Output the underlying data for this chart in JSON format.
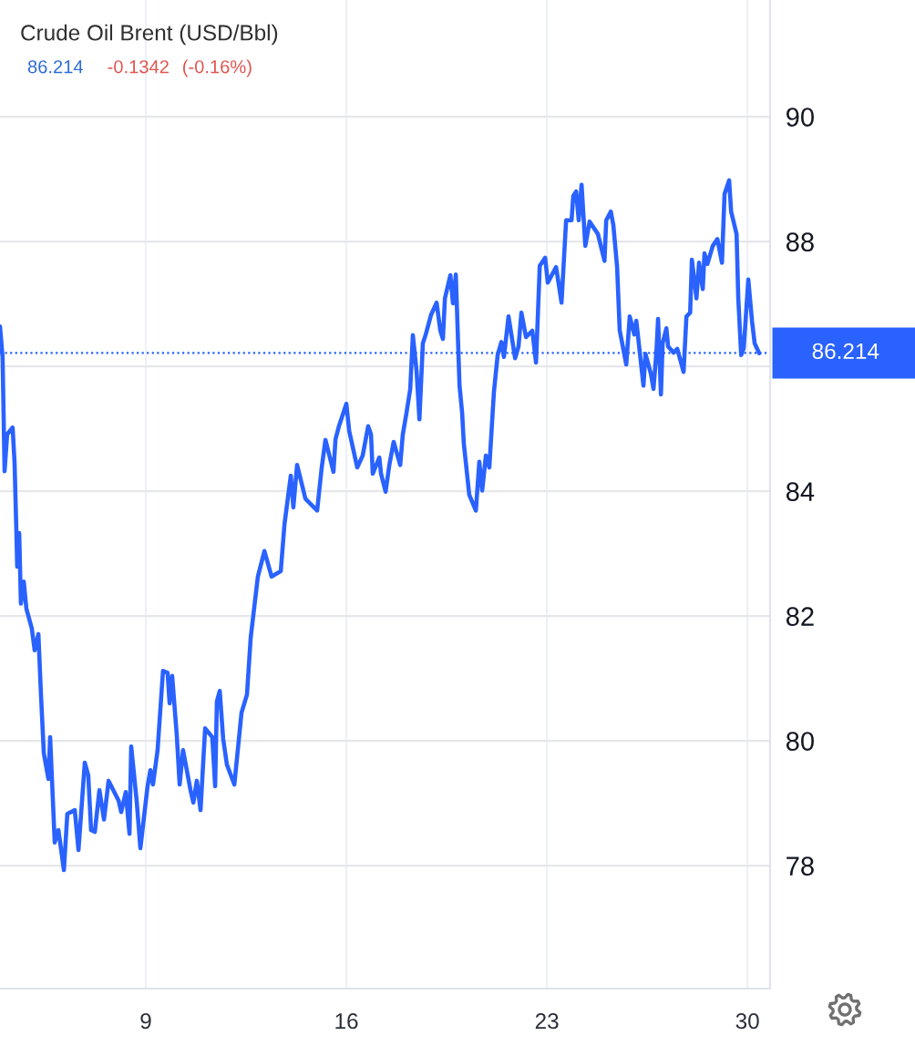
{
  "chart_data": {
    "type": "line",
    "title": "Crude Oil Brent (USD/Bbl)",
    "annotations": [
      "86.214",
      "-0.1342",
      "(-0.16%)"
    ],
    "color": "#2962ff",
    "x": [
      3.91,
      4.0,
      4.07,
      4.16,
      4.35,
      4.42,
      4.48,
      4.51,
      4.58,
      4.64,
      4.74,
      4.83,
      5.02,
      5.12,
      5.25,
      5.34,
      5.44,
      5.6,
      5.66,
      5.82,
      5.95,
      6.14,
      6.26,
      6.52,
      6.65,
      6.87,
      6.99,
      7.09,
      7.22,
      7.38,
      7.54,
      7.7,
      8.05,
      8.14,
      8.3,
      8.43,
      8.49,
      8.68,
      8.81,
      9.06,
      9.16,
      9.25,
      9.41,
      9.6,
      9.76,
      9.83,
      9.92,
      10.08,
      10.18,
      10.3,
      10.56,
      10.66,
      10.78,
      10.91,
      11.07,
      11.32,
      11.42,
      11.48,
      11.58,
      11.7,
      11.83,
      12.09,
      12.34,
      12.53,
      12.66,
      12.91,
      13.14,
      13.39,
      13.71,
      13.84,
      14.06,
      14.15,
      14.28,
      14.57,
      14.98,
      15.14,
      15.27,
      15.55,
      15.62,
      15.74,
      16.0,
      16.1,
      16.38,
      16.57,
      16.76,
      16.86,
      16.92,
      17.15,
      17.21,
      17.37,
      17.5,
      17.65,
      17.88,
      17.97,
      18.1,
      18.23,
      18.32,
      18.45,
      18.55,
      18.67,
      18.77,
      18.96,
      19.15,
      19.28,
      19.37,
      19.44,
      19.63,
      19.72,
      19.82,
      19.95,
      20.04,
      20.1,
      20.29,
      20.52,
      20.64,
      20.74,
      20.87,
      20.99,
      21.15,
      21.28,
      21.41,
      21.5,
      21.66,
      21.89,
      22.01,
      22.11,
      22.27,
      22.49,
      22.62,
      22.75,
      22.94,
      23.03,
      23.32,
      23.51,
      23.67,
      23.86,
      23.92,
      24.02,
      24.11,
      24.21,
      24.34,
      24.49,
      24.78,
      25.01,
      25.07,
      25.23,
      25.32,
      25.45,
      25.54,
      25.77,
      25.89,
      26.05,
      26.12,
      26.37,
      26.44,
      26.63,
      26.72,
      26.82,
      26.88,
      26.98,
      27.04,
      27.17,
      27.23,
      27.42,
      27.55,
      27.77,
      27.87,
      28.0,
      28.06,
      28.22,
      28.31,
      28.44,
      28.5,
      28.6,
      28.79,
      28.95,
      29.11,
      29.2,
      29.36,
      29.43,
      29.62,
      29.68,
      29.78,
      29.87,
      30.03,
      30.16,
      30.25,
      30.41
    ],
    "values": [
      86.64,
      86.15,
      84.32,
      84.91,
      85.02,
      84.44,
      83.39,
      82.79,
      83.33,
      82.2,
      82.55,
      82.12,
      81.8,
      81.45,
      81.71,
      80.74,
      79.8,
      79.39,
      80.06,
      78.37,
      78.57,
      77.93,
      78.83,
      78.89,
      78.25,
      79.65,
      79.45,
      78.57,
      78.54,
      79.21,
      78.74,
      79.36,
      79.04,
      78.86,
      79.18,
      78.51,
      79.91,
      79.04,
      78.28,
      79.27,
      79.53,
      79.3,
      79.85,
      81.12,
      81.09,
      80.6,
      81.04,
      80.09,
      79.3,
      79.85,
      79.21,
      79.01,
      79.36,
      78.89,
      80.2,
      80.06,
      79.27,
      80.63,
      80.8,
      80.03,
      79.62,
      79.3,
      80.45,
      80.74,
      81.65,
      82.63,
      83.04,
      82.63,
      82.72,
      83.47,
      84.25,
      83.74,
      84.42,
      83.88,
      83.69,
      84.38,
      84.82,
      84.31,
      84.83,
      85.04,
      85.4,
      84.96,
      84.38,
      84.57,
      85.04,
      84.91,
      84.28,
      84.54,
      84.28,
      83.99,
      84.42,
      84.79,
      84.42,
      84.91,
      85.26,
      85.64,
      86.5,
      85.93,
      85.15,
      86.37,
      86.51,
      86.83,
      87.02,
      86.57,
      86.44,
      87.09,
      87.46,
      87.01,
      87.47,
      85.69,
      85.26,
      84.76,
      83.94,
      83.69,
      84.47,
      84.01,
      84.57,
      84.38,
      85.59,
      86.18,
      86.39,
      86.15,
      86.8,
      86.13,
      86.32,
      86.86,
      86.47,
      86.57,
      86.06,
      87.61,
      87.74,
      87.34,
      87.59,
      87.02,
      88.34,
      88.34,
      88.73,
      88.8,
      88.34,
      88.91,
      87.93,
      88.32,
      88.12,
      87.69,
      88.34,
      88.48,
      88.26,
      87.59,
      86.58,
      86.03,
      86.8,
      86.51,
      86.73,
      85.69,
      86.2,
      85.88,
      85.64,
      86.22,
      86.76,
      85.55,
      86.37,
      86.61,
      86.32,
      86.22,
      86.28,
      85.91,
      86.8,
      86.86,
      87.71,
      87.09,
      87.66,
      87.24,
      87.81,
      87.64,
      87.93,
      88.04,
      87.66,
      88.76,
      88.98,
      88.48,
      88.12,
      87.09,
      86.18,
      86.29,
      87.39,
      86.72,
      86.37,
      86.21
    ],
    "xlim": [
      3.91,
      30.79
    ],
    "ylim": [
      76.03,
      91.87
    ],
    "xticks": [
      9,
      16,
      23,
      30
    ],
    "yticks": [
      78,
      80,
      82,
      84,
      {
        "value": 86,
        "label": null
      },
      88,
      90
    ],
    "grid": true,
    "ref_lines": [
      {
        "axis": "y",
        "value": 86.214,
        "label": "86.214",
        "color": "#2962ff",
        "line_style": "dotted"
      }
    ]
  }
}
